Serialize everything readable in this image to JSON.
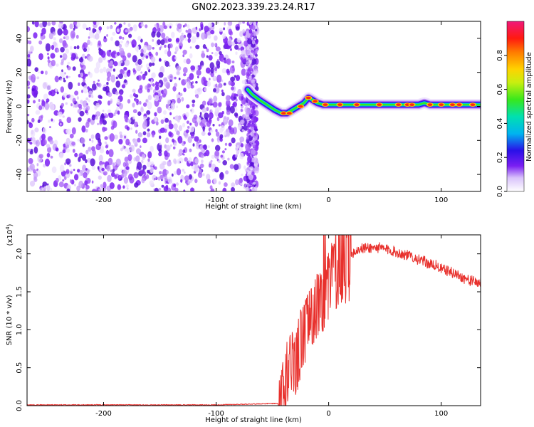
{
  "title": "GN02.2023.339.23.24.R17",
  "colors": {
    "snr_line": "#e8302c",
    "scatter_purple": "#7a1ff2",
    "axis": "#000000"
  },
  "chart_data": [
    {
      "type": "heatmap",
      "xlabel": "Height of straight line (km)",
      "ylabel": "Frequency (Hz)",
      "xlim": [
        -268,
        135
      ],
      "ylim": [
        -50,
        50
      ],
      "xticks": [
        -200,
        -100,
        0,
        100
      ],
      "yticks": [
        -40,
        -20,
        0,
        20,
        40
      ],
      "xtick_labels": [
        "-200",
        "-100",
        "0",
        "100"
      ],
      "ytick_labels": [
        "-40",
        "-20",
        "0",
        "20",
        "40"
      ],
      "noise_region_x": [
        -268,
        -65
      ],
      "ridge": {
        "x": [
          -72,
          -68,
          -62,
          -55,
          -48,
          -42,
          -37,
          -32,
          -27,
          -22,
          -18,
          -15,
          -10,
          -5,
          0,
          20,
          40,
          60,
          70,
          80,
          85,
          90,
          100,
          110,
          120,
          135
        ],
        "y": [
          10,
          7,
          4,
          1,
          -2,
          -4,
          -4,
          -2,
          0,
          2,
          5,
          4,
          2,
          1,
          1,
          1,
          1,
          1,
          1,
          1,
          2,
          1,
          1,
          1,
          1,
          1
        ]
      },
      "colorbar": {
        "label": "Normalized spectral amplitude",
        "range": [
          0.0,
          1.0
        ],
        "ticks": [
          0.0,
          0.2,
          0.4,
          0.6,
          0.8
        ],
        "tick_labels": [
          "0.0",
          "0.2",
          "0.4",
          "0.6",
          "0.8"
        ]
      },
      "grid": false
    },
    {
      "type": "line",
      "xlabel": "Height of straight line (km)",
      "ylabel": "SNR (10 * v/v)",
      "y_multiplier": "(x10",
      "y_multiplier_exp": "4",
      "y_multiplier_close": ")",
      "xlim": [
        -268,
        135
      ],
      "ylim": [
        0.0,
        2.25
      ],
      "xticks": [
        -200,
        -100,
        0,
        100
      ],
      "yticks": [
        0.0,
        0.5,
        1.0,
        1.5,
        2.0
      ],
      "xtick_labels": [
        "-200",
        "-100",
        "0",
        "100"
      ],
      "ytick_labels": [
        "0.0",
        "0.5",
        "1.0",
        "1.5",
        "2.0"
      ],
      "series": [
        {
          "x": [
            -268,
            -200,
            -100,
            -45,
            -40,
            -36,
            -32,
            -29,
            -26,
            -23,
            -20,
            -17,
            -14,
            -11,
            -8,
            -5,
            -2,
            0,
            5,
            10,
            15,
            20,
            25,
            30,
            35,
            40,
            45,
            50,
            55,
            60,
            65,
            70,
            75,
            80,
            85,
            90,
            95,
            100,
            105,
            110,
            115,
            120,
            125,
            130,
            135
          ],
          "values": [
            0.01,
            0.01,
            0.01,
            0.03,
            0.15,
            0.5,
            0.65,
            0.55,
            0.75,
            0.95,
            1.0,
            1.15,
            1.25,
            1.3,
            1.32,
            1.4,
            1.5,
            1.6,
            1.75,
            1.85,
            1.95,
            2.0,
            2.05,
            2.07,
            2.08,
            2.08,
            2.08,
            2.06,
            2.05,
            2.02,
            2.0,
            1.98,
            1.96,
            1.92,
            1.9,
            1.86,
            1.85,
            1.8,
            1.78,
            1.75,
            1.72,
            1.68,
            1.65,
            1.63,
            1.62
          ]
        }
      ],
      "grid": false
    }
  ]
}
